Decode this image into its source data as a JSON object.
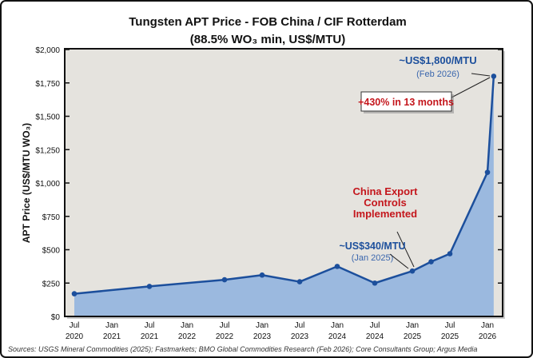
{
  "chart_data": {
    "type": "area",
    "title": "Tungsten APT Price - FOB China / CIF Rotterdam",
    "subtitle": "(88.5% WO₃ min, US$/MTU)",
    "xlabel": "",
    "ylabel": "APT Price (US$/MTU WO₃)",
    "ylim": [
      0,
      2000
    ],
    "yticks": [
      "$0",
      "$250",
      "$500",
      "$750",
      "$1,000",
      "$1,250",
      "$1,500",
      "$1,750",
      "$2,000"
    ],
    "ytick_values": [
      0,
      250,
      500,
      750,
      1000,
      1250,
      1500,
      1750,
      2000
    ],
    "xticks": [
      {
        "date": "2020-07",
        "line1": "Jul",
        "line2": "2020"
      },
      {
        "date": "2021-01",
        "line1": "Jan",
        "line2": "2021"
      },
      {
        "date": "2021-07",
        "line1": "Jul",
        "line2": "2021"
      },
      {
        "date": "2022-01",
        "line1": "Jan",
        "line2": "2022"
      },
      {
        "date": "2022-07",
        "line1": "Jul",
        "line2": "2022"
      },
      {
        "date": "2023-01",
        "line1": "Jan",
        "line2": "2023"
      },
      {
        "date": "2023-07",
        "line1": "Jul",
        "line2": "2023"
      },
      {
        "date": "2024-01",
        "line1": "Jan",
        "line2": "2024"
      },
      {
        "date": "2024-07",
        "line1": "Jul",
        "line2": "2024"
      },
      {
        "date": "2025-01",
        "line1": "Jan",
        "line2": "2025"
      },
      {
        "date": "2025-07",
        "line1": "Jul",
        "line2": "2025"
      },
      {
        "date": "2026-01",
        "line1": "Jan",
        "line2": "2026"
      }
    ],
    "series": [
      {
        "points": [
          {
            "date": "2020-07",
            "value": 170
          },
          {
            "date": "2021-07",
            "value": 225
          },
          {
            "date": "2022-07",
            "value": 275
          },
          {
            "date": "2023-01",
            "value": 310
          },
          {
            "date": "2023-07",
            "value": 260
          },
          {
            "date": "2024-01",
            "value": 375
          },
          {
            "date": "2024-07",
            "value": 250
          },
          {
            "date": "2025-01",
            "value": 340
          },
          {
            "date": "2025-04",
            "value": 410
          },
          {
            "date": "2025-07",
            "value": 470
          },
          {
            "date": "2026-01",
            "value": 1080
          },
          {
            "date": "2026-02",
            "value": 1800
          }
        ]
      }
    ],
    "grid": false,
    "annotations": {
      "peak_value": "~US$1,800/MTU",
      "peak_date": "(Feb 2026)",
      "increase": "+430% in 13 months",
      "jan2025_value": "~US$340/MTU",
      "jan2025_date": "(Jan 2025)",
      "export_line1": "China Export",
      "export_line2": "Controls",
      "export_line3": "Implemented"
    },
    "colors": {
      "line": "#1c4f9c",
      "fill": "#9bb9df",
      "plot_bg": "#e5e3de",
      "accent_red": "#c4161c"
    }
  },
  "sources": "Sources: USGS Mineral Commodities (2025); Fastmarkets; BMO Global Commodities Research (Feb 2026); Core Consultants Group; Argus Media"
}
